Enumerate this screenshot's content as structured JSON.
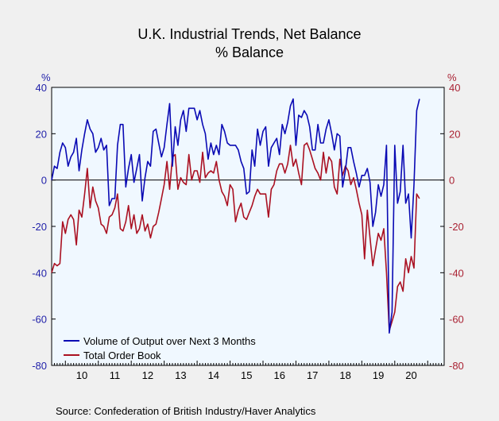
{
  "chart_data": {
    "type": "line",
    "title": "U.K. Industrial Trends, Net Balance",
    "subtitle": "% Balance",
    "left_axis_label": "%",
    "right_axis_label": "%",
    "ylim": [
      -80,
      40
    ],
    "yticks": [
      -80,
      -60,
      -40,
      -20,
      0,
      20,
      40
    ],
    "x_start_year": 2009.583,
    "x_end_year": 2021.5,
    "x_tick_labels": [
      "10",
      "11",
      "12",
      "13",
      "14",
      "15",
      "16",
      "17",
      "18",
      "19",
      "20"
    ],
    "grid": false,
    "zero_line": true,
    "legend_position": "bottom-left",
    "series": [
      {
        "name": "Volume of Output over Next 3 Months",
        "color": "#0a0ab4",
        "start_year": 2009.583,
        "values": [
          0,
          6,
          5,
          12,
          16,
          14,
          6,
          10,
          12,
          18,
          4,
          13,
          20,
          26,
          22,
          20,
          12,
          14,
          18,
          13,
          15,
          -11,
          -8,
          -8,
          15,
          24,
          24,
          -3,
          5,
          11,
          -1,
          5,
          11,
          -9,
          1,
          8,
          6,
          21,
          22,
          16,
          10,
          14,
          24,
          33,
          6,
          23,
          15,
          26,
          30,
          21,
          31,
          31,
          31,
          26,
          30,
          24,
          20,
          9,
          16,
          11,
          15,
          11,
          24,
          21,
          16,
          15,
          15,
          15,
          13,
          8,
          5,
          -6,
          -5,
          13,
          6,
          22,
          15,
          21,
          23,
          6,
          14,
          16,
          18,
          11,
          24,
          20,
          25,
          32,
          35,
          15,
          28,
          27,
          30,
          28,
          23,
          13,
          13,
          24,
          16,
          16,
          22,
          26,
          20,
          13,
          20,
          19,
          -3,
          4,
          14,
          14,
          8,
          3,
          -3,
          2,
          2,
          5,
          -1,
          -20,
          -14,
          -2,
          -7,
          -2,
          15,
          -66,
          -57,
          15,
          -10,
          -5,
          15,
          -10,
          -6,
          -25,
          -2,
          30,
          35
        ]
      },
      {
        "name": "Total Order Book",
        "color": "#aa1122",
        "start_year": 2009.583,
        "values": [
          -40,
          -36,
          -37,
          -36,
          -18,
          -23,
          -17,
          -15,
          -17,
          -28,
          -13,
          -16,
          -6,
          5,
          -12,
          -3,
          -9,
          -12,
          -19,
          -20,
          -23,
          -16,
          -15,
          -12,
          -6,
          -21,
          -22,
          -18,
          -11,
          -21,
          -15,
          -23,
          -21,
          -15,
          -22,
          -19,
          -25,
          -20,
          -19,
          -14,
          -8,
          -2,
          8,
          -4,
          10,
          11,
          -4,
          1,
          -1,
          -2,
          11,
          0,
          4,
          4,
          -1,
          12,
          1,
          3,
          4,
          3,
          8,
          0,
          -5,
          -7,
          -11,
          -2,
          -4,
          -18,
          -13,
          -10,
          -16,
          -17,
          -14,
          -11,
          -7,
          -4,
          -6,
          -6,
          -6,
          -16,
          -4,
          -2,
          4,
          7,
          7,
          3,
          7,
          15,
          6,
          9,
          3,
          -2,
          15,
          16,
          13,
          9,
          5,
          3,
          0,
          12,
          3,
          10,
          8,
          -3,
          -6,
          9,
          2,
          6,
          4,
          -2,
          1,
          -4,
          -10,
          -15,
          -34,
          -13,
          -25,
          -37,
          -30,
          -23,
          -26,
          -21,
          -40,
          -65,
          -61,
          -57,
          -46,
          -44,
          -48,
          -34,
          -40,
          -33,
          -38,
          -6,
          -8
        ]
      }
    ]
  },
  "source_text": "Source:   Confederation of British Industry/Haver Analytics"
}
